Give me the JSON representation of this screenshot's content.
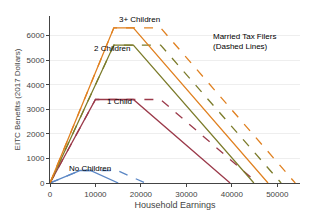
{
  "chart_data": {
    "type": "line",
    "xlabel": "Household Earnings",
    "ylabel": "EITC Benefits (2017 Dollars)",
    "xlim": [
      0,
      55000
    ],
    "ylim": [
      0,
      6800
    ],
    "xticks": [
      0,
      10000,
      20000,
      30000,
      40000,
      50000
    ],
    "yticks": [
      0,
      1000,
      2000,
      3000,
      4000,
      5000,
      6000
    ],
    "grid": "y",
    "series": [
      {
        "color": "#5B87C5",
        "line_style": "solid",
        "x": [
          0,
          6670,
          8880,
          15010
        ],
        "values": [
          0,
          510,
          510,
          0
        ]
      },
      {
        "color": "#5B87C5",
        "line_style": "dashed",
        "x": [
          0,
          6670,
          14820,
          20950
        ],
        "values": [
          0,
          510,
          510,
          0
        ]
      },
      {
        "color": "#9B3A4A",
        "line_style": "solid",
        "x": [
          0,
          10000,
          18340,
          39617
        ],
        "values": [
          0,
          3400,
          3400,
          0
        ]
      },
      {
        "color": "#9B3A4A",
        "line_style": "dashed",
        "x": [
          0,
          10000,
          24340,
          45617
        ],
        "values": [
          0,
          3400,
          3400,
          0
        ]
      },
      {
        "color": "#7B7B2A",
        "line_style": "solid",
        "x": [
          0,
          14040,
          18340,
          44846
        ],
        "values": [
          0,
          5616,
          5616,
          0
        ]
      },
      {
        "color": "#7B7B2A",
        "line_style": "dashed",
        "x": [
          0,
          14040,
          24340,
          50846
        ],
        "values": [
          0,
          5616,
          5616,
          0
        ]
      },
      {
        "color": "#E08020",
        "line_style": "solid",
        "x": [
          0,
          14040,
          18340,
          47955
        ],
        "values": [
          0,
          6318,
          6318,
          0
        ]
      },
      {
        "color": "#E08020",
        "line_style": "dashed",
        "x": [
          0,
          14040,
          24340,
          53955
        ],
        "values": [
          0,
          6318,
          6318,
          0
        ]
      }
    ],
    "annotations": [
      {
        "text": "3+ Children",
        "x": 14800,
        "y": 6400
      },
      {
        "text": "2 Children",
        "x": 9200,
        "y": 5200
      },
      {
        "text": "1 Child",
        "x": 12000,
        "y": 3050
      },
      {
        "text": "No Children",
        "x": 3800,
        "y": 340
      },
      {
        "text": "Married Tax Filers\n(Dashed Lines)",
        "x": 35500,
        "y": 5300
      }
    ]
  }
}
